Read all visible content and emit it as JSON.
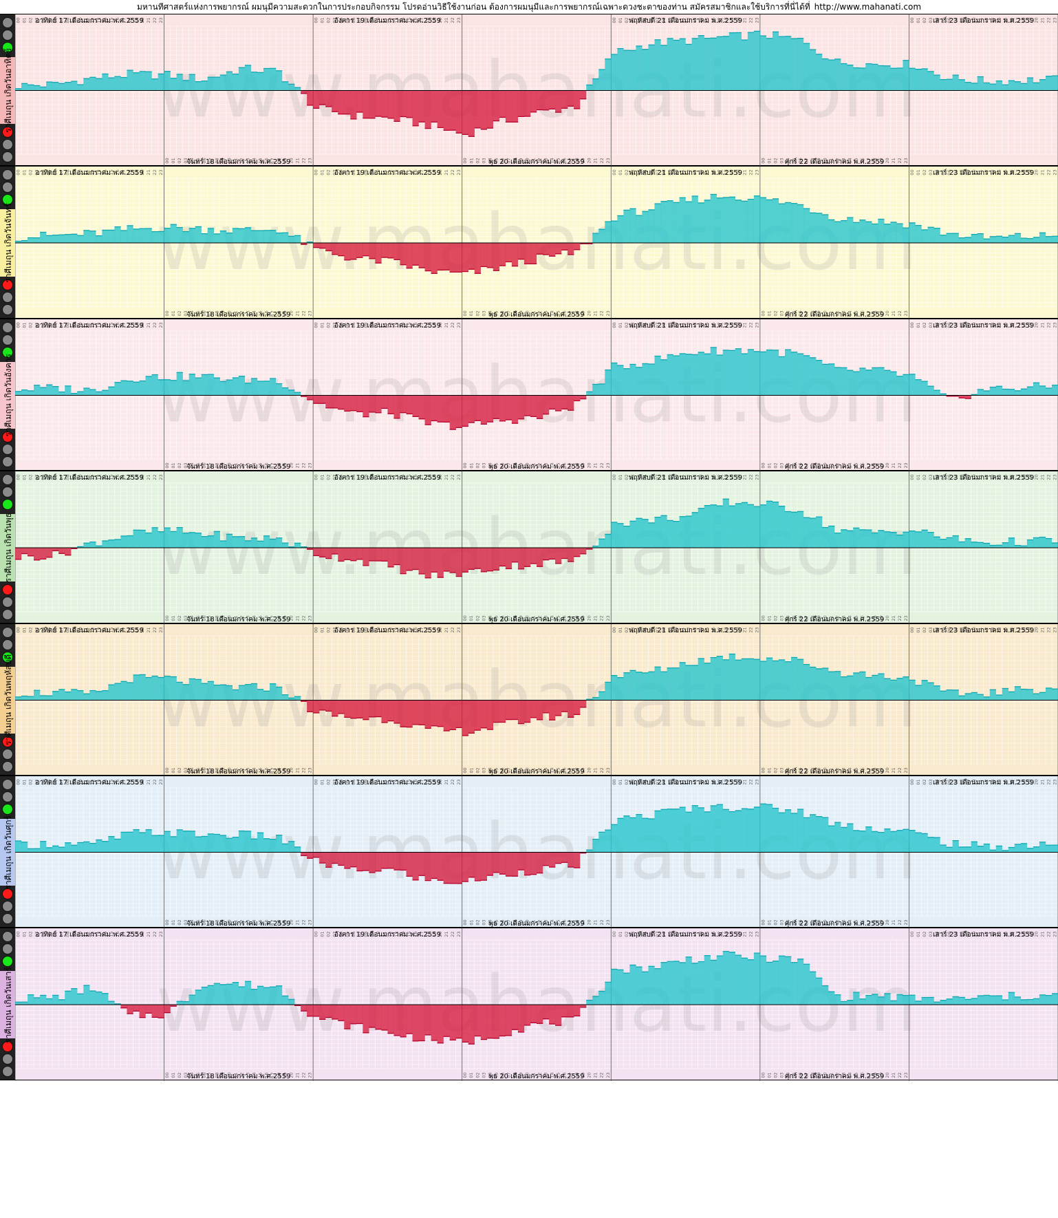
{
  "header": {
    "text": "มหานทีศาสตร์แห่งการพยากรณ์ ผมนุมีความสะดวกในการประกอบกิจกรรม โปรดอ่านวิธีใช้งานก่อน ต้องการผมนุมีและการพยากรณ์เฉพาะดวงชะตาของท่าน สมัครสมาชิกและใช้บริการที่นี่ได้ที่",
    "url": "http://www.mahanati.com"
  },
  "watermark": "www.mahanati.com",
  "colors": {
    "positive": "#22c4cc",
    "negative": "#d61a3c",
    "green_light": "#19e619",
    "red_light": "#ff1a1a",
    "grey_light": "#8a8a8a"
  },
  "top_day_labels": [
    {
      "text": "อาทิตย์ 17 เดือนมกราคม พ.ศ.2559",
      "day": 0
    },
    {
      "text": "อังคาร 19 เดือนมกราคม พ.ศ.2559",
      "day": 2
    },
    {
      "text": "พฤหัสบดี 21 เดือนมกราคม พ.ศ.2559",
      "day": 4
    },
    {
      "text": "เสาร์ 23 เดือนมกราคม พ.ศ.2559",
      "day": 6
    }
  ],
  "bottom_day_labels": [
    {
      "text": "จันทร์ 18 เดือนมกราคม พ.ศ.2559",
      "day": 1
    },
    {
      "text": "พุธ 20 เดือนมกราคม พ.ศ.2559",
      "day": 3
    },
    {
      "text": "ศุกร์ 22 เดือนมกราคม พ.ศ.2559",
      "day": 5
    }
  ],
  "hour_ticks": [
    "00",
    "01",
    "02",
    "03",
    "04",
    "05",
    "06",
    "07",
    "08",
    "09",
    "10",
    "11",
    "12",
    "13",
    "14",
    "15",
    "16",
    "17",
    "18",
    "19",
    "20",
    "21",
    "22",
    "23"
  ],
  "panels": [
    {
      "label": "ราศีเมถุน เกิดวันอาทิตย์",
      "bg": "#fbe4e4",
      "side": "#f4b6b6",
      "lights_top": "green",
      "lights_bottom": "red"
    },
    {
      "label": "ราศีเมถุน เกิดวันจันทร์",
      "bg": "#fcf8d2",
      "side": "#f8f0a0",
      "lights_top": "green",
      "lights_bottom": "red"
    },
    {
      "label": "ราศีเมถุน เกิดวันอังคาร",
      "bg": "#fbe8ea",
      "side": "#f7c6cc",
      "lights_top": "green",
      "lights_bottom": "red"
    },
    {
      "label": "ราศีเมถุน เกิดวันพุธ",
      "bg": "#e4f3e0",
      "side": "#b9e2b0",
      "lights_top": "green",
      "lights_bottom": "red"
    },
    {
      "label": "ราศีเมถุน เกิดวันพฤหัสบดี",
      "bg": "#f9e9cd",
      "side": "#f3d092",
      "lights_top": "green",
      "lights_bottom": "red"
    },
    {
      "label": "ราศีเมถุน เกิดวันศุกร์",
      "bg": "#e3eef6",
      "side": "#b6c8f0",
      "lights_top": "green",
      "lights_bottom": "red"
    },
    {
      "label": "ราศีเมถุน เกิดวันเสาร์",
      "bg": "#f3e2f1",
      "side": "#dcb2e0",
      "lights_top": "green",
      "lights_bottom": "red"
    }
  ],
  "chart_data": {
    "type": "bar",
    "days": [
      "อาทิตย์ 17 เดือนมกราคม พ.ศ.2559",
      "จันทร์ 18 เดือนมกราคม พ.ศ.2559",
      "อังคาร 19 เดือนมกราคม พ.ศ.2559",
      "พุธ 20 เดือนมกราคม พ.ศ.2559",
      "พฤหัสบดี 21 เดือนมกราคม พ.ศ.2559",
      "ศุกร์ 22 เดือนมกราคม พ.ศ.2559",
      "เสาร์ 23 เดือนมกราคม พ.ศ.2559"
    ],
    "x_unit": "hour",
    "hours_per_day": 24,
    "ylim": [
      -100,
      100
    ],
    "series": [
      {
        "profile": [
          [
            0,
            8
          ],
          [
            6,
            10
          ],
          [
            12,
            20
          ],
          [
            18,
            26
          ],
          [
            24,
            25
          ],
          [
            30,
            18
          ],
          [
            36,
            35
          ],
          [
            42,
            30
          ],
          [
            48,
            -28
          ],
          [
            54,
            -40
          ],
          [
            60,
            -45
          ],
          [
            66,
            -55
          ],
          [
            72,
            -70
          ],
          [
            78,
            -50
          ],
          [
            84,
            -35
          ],
          [
            90,
            -25
          ],
          [
            96,
            60
          ],
          [
            102,
            75
          ],
          [
            108,
            80
          ],
          [
            114,
            85
          ],
          [
            120,
            90
          ],
          [
            126,
            80
          ],
          [
            132,
            45
          ],
          [
            138,
            42
          ],
          [
            144,
            42
          ],
          [
            150,
            20
          ],
          [
            156,
            15
          ],
          [
            167,
            18
          ]
        ]
      },
      {
        "profile": [
          [
            0,
            10
          ],
          [
            6,
            12
          ],
          [
            12,
            15
          ],
          [
            18,
            22
          ],
          [
            24,
            25
          ],
          [
            30,
            22
          ],
          [
            36,
            20
          ],
          [
            42,
            22
          ],
          [
            48,
            -10
          ],
          [
            54,
            -25
          ],
          [
            60,
            -30
          ],
          [
            66,
            -45
          ],
          [
            72,
            -50
          ],
          [
            78,
            -38
          ],
          [
            84,
            -25
          ],
          [
            90,
            -15
          ],
          [
            96,
            42
          ],
          [
            102,
            55
          ],
          [
            108,
            68
          ],
          [
            114,
            75
          ],
          [
            120,
            70
          ],
          [
            126,
            60
          ],
          [
            132,
            40
          ],
          [
            138,
            35
          ],
          [
            144,
            30
          ],
          [
            150,
            15
          ],
          [
            156,
            8
          ],
          [
            167,
            12
          ]
        ]
      },
      {
        "profile": [
          [
            0,
            10
          ],
          [
            6,
            12
          ],
          [
            12,
            8
          ],
          [
            18,
            28
          ],
          [
            24,
            30
          ],
          [
            30,
            30
          ],
          [
            36,
            25
          ],
          [
            42,
            25
          ],
          [
            48,
            -12
          ],
          [
            54,
            -30
          ],
          [
            60,
            -28
          ],
          [
            66,
            -45
          ],
          [
            72,
            -50
          ],
          [
            78,
            -40
          ],
          [
            84,
            -35
          ],
          [
            90,
            -15
          ],
          [
            96,
            45
          ],
          [
            102,
            55
          ],
          [
            108,
            68
          ],
          [
            114,
            72
          ],
          [
            120,
            72
          ],
          [
            126,
            65
          ],
          [
            132,
            40
          ],
          [
            138,
            40
          ],
          [
            144,
            30
          ],
          [
            150,
            -8
          ],
          [
            156,
            10
          ],
          [
            167,
            15
          ]
        ]
      },
      {
        "profile": [
          [
            0,
            -15
          ],
          [
            6,
            -12
          ],
          [
            12,
            8
          ],
          [
            18,
            22
          ],
          [
            24,
            28
          ],
          [
            30,
            22
          ],
          [
            36,
            15
          ],
          [
            42,
            15
          ],
          [
            48,
            -10
          ],
          [
            54,
            -18
          ],
          [
            60,
            -30
          ],
          [
            66,
            -45
          ],
          [
            72,
            -40
          ],
          [
            78,
            -30
          ],
          [
            84,
            -25
          ],
          [
            90,
            -20
          ],
          [
            96,
            38
          ],
          [
            102,
            45
          ],
          [
            108,
            50
          ],
          [
            114,
            72
          ],
          [
            120,
            70
          ],
          [
            126,
            60
          ],
          [
            132,
            28
          ],
          [
            138,
            25
          ],
          [
            144,
            28
          ],
          [
            150,
            15
          ],
          [
            156,
            8
          ],
          [
            167,
            12
          ]
        ]
      },
      {
        "profile": [
          [
            0,
            12
          ],
          [
            6,
            12
          ],
          [
            12,
            10
          ],
          [
            18,
            35
          ],
          [
            24,
            35
          ],
          [
            30,
            25
          ],
          [
            36,
            20
          ],
          [
            42,
            22
          ],
          [
            48,
            -20
          ],
          [
            54,
            -28
          ],
          [
            60,
            -30
          ],
          [
            66,
            -48
          ],
          [
            72,
            -50
          ],
          [
            78,
            -40
          ],
          [
            84,
            -28
          ],
          [
            90,
            -22
          ],
          [
            96,
            40
          ],
          [
            102,
            45
          ],
          [
            108,
            60
          ],
          [
            114,
            70
          ],
          [
            120,
            68
          ],
          [
            126,
            62
          ],
          [
            132,
            45
          ],
          [
            138,
            40
          ],
          [
            144,
            35
          ],
          [
            150,
            10
          ],
          [
            156,
            12
          ],
          [
            167,
            20
          ]
        ]
      },
      {
        "profile": [
          [
            0,
            12
          ],
          [
            6,
            14
          ],
          [
            12,
            12
          ],
          [
            18,
            30
          ],
          [
            24,
            32
          ],
          [
            30,
            28
          ],
          [
            36,
            28
          ],
          [
            42,
            24
          ],
          [
            48,
            -15
          ],
          [
            54,
            -30
          ],
          [
            60,
            -28
          ],
          [
            66,
            -45
          ],
          [
            72,
            -48
          ],
          [
            78,
            -35
          ],
          [
            84,
            -28
          ],
          [
            90,
            -20
          ],
          [
            96,
            50
          ],
          [
            102,
            60
          ],
          [
            108,
            70
          ],
          [
            114,
            72
          ],
          [
            120,
            72
          ],
          [
            126,
            65
          ],
          [
            132,
            45
          ],
          [
            138,
            38
          ],
          [
            144,
            32
          ],
          [
            150,
            15
          ],
          [
            156,
            8
          ],
          [
            167,
            15
          ]
        ]
      },
      {
        "profile": [
          [
            0,
            10
          ],
          [
            6,
            12
          ],
          [
            12,
            28
          ],
          [
            18,
            -18
          ],
          [
            24,
            -15
          ],
          [
            30,
            35
          ],
          [
            36,
            32
          ],
          [
            42,
            28
          ],
          [
            48,
            -20
          ],
          [
            54,
            -35
          ],
          [
            60,
            -45
          ],
          [
            66,
            -55
          ],
          [
            72,
            -60
          ],
          [
            78,
            -45
          ],
          [
            84,
            -30
          ],
          [
            90,
            -25
          ],
          [
            96,
            55
          ],
          [
            102,
            60
          ],
          [
            108,
            72
          ],
          [
            114,
            78
          ],
          [
            120,
            75
          ],
          [
            126,
            70
          ],
          [
            132,
            12
          ],
          [
            138,
            15
          ],
          [
            144,
            10
          ],
          [
            150,
            8
          ],
          [
            156,
            12
          ],
          [
            167,
            15
          ]
        ]
      }
    ]
  }
}
